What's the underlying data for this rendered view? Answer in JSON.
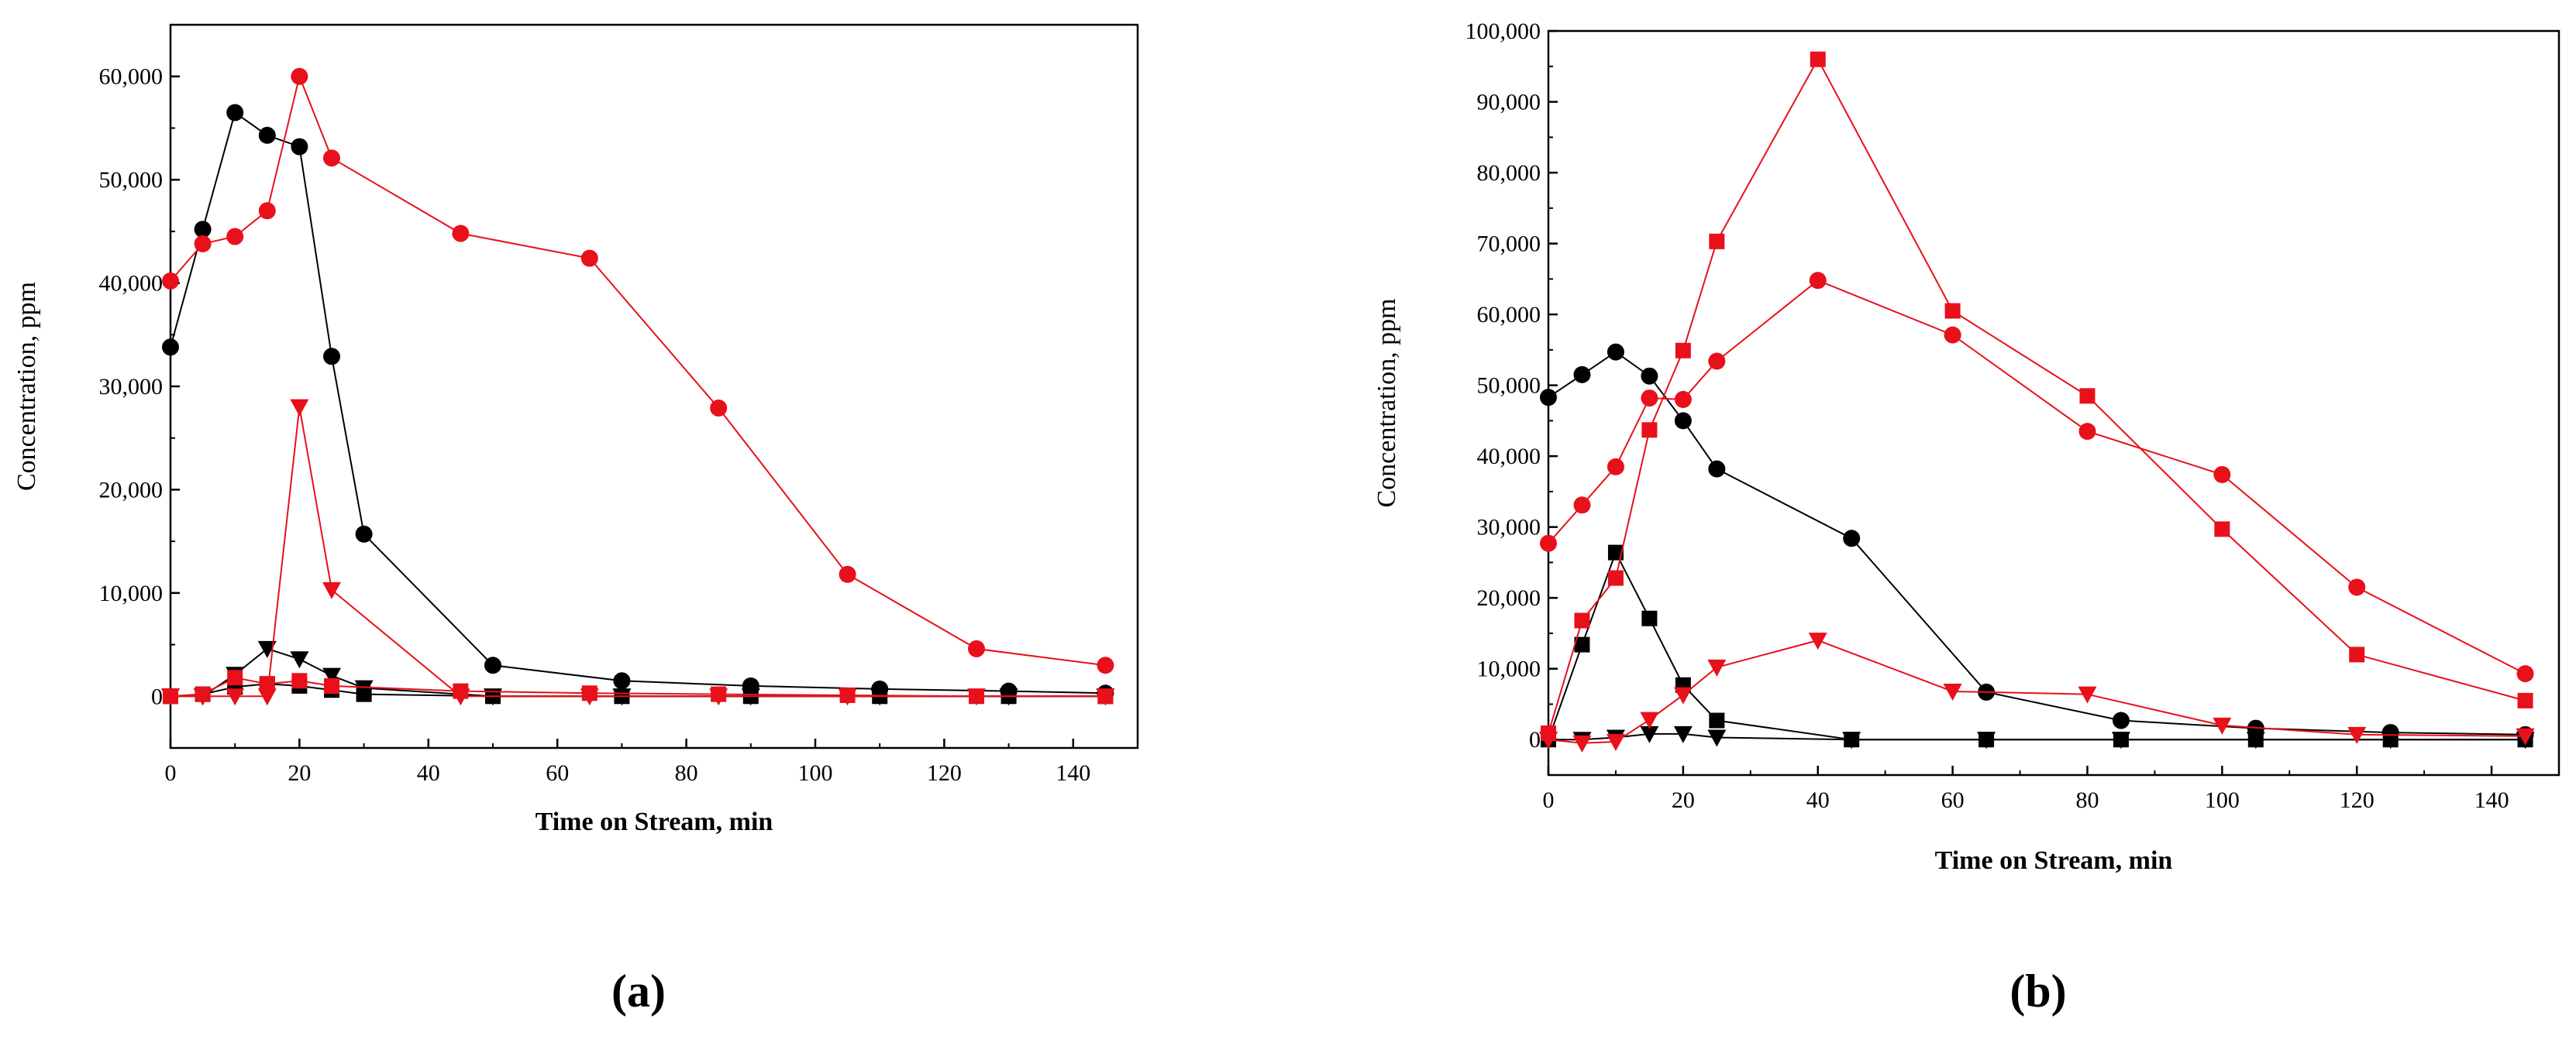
{
  "chart_data": [
    {
      "type": "line",
      "panel_label": "(a)",
      "xlabel": "Time on Stream, min",
      "ylabel": "Concentration, ppm",
      "xlim": [
        0,
        150
      ],
      "ylim": [
        -5000,
        65000
      ],
      "x_ticks": [
        0,
        20,
        40,
        60,
        80,
        100,
        120,
        140
      ],
      "x_tick_labels": [
        "0",
        "20",
        "40",
        "60",
        "80",
        "100",
        "120",
        "140"
      ],
      "y_ticks": [
        0,
        10000,
        20000,
        30000,
        40000,
        50000,
        60000
      ],
      "y_tick_labels": [
        "0",
        "10,000",
        "20,000",
        "30,000",
        "40,000",
        "50,000",
        "60,000"
      ],
      "grid": false,
      "series": [
        {
          "name": "black-circle",
          "color": "#000000",
          "marker": "circle",
          "x": [
            0,
            5,
            10,
            15,
            20,
            25,
            30,
            50,
            70,
            90,
            110,
            130,
            145
          ],
          "y": [
            33800,
            45200,
            56500,
            54300,
            53200,
            32900,
            15700,
            3000,
            1500,
            1000,
            700,
            500,
            300
          ]
        },
        {
          "name": "black-square",
          "color": "#000000",
          "marker": "square",
          "x": [
            0,
            5,
            10,
            15,
            20,
            25,
            30,
            50,
            70,
            90,
            110,
            130,
            145
          ],
          "y": [
            0,
            200,
            900,
            1200,
            1000,
            600,
            200,
            0,
            0,
            0,
            0,
            0,
            0
          ]
        },
        {
          "name": "black-triangle",
          "color": "#000000",
          "marker": "triangle-down",
          "x": [
            0,
            5,
            10,
            15,
            20,
            25,
            30,
            50,
            70,
            90,
            110,
            130,
            145
          ],
          "y": [
            0,
            0,
            2100,
            4600,
            3600,
            2000,
            800,
            0,
            0,
            0,
            0,
            0,
            0
          ]
        },
        {
          "name": "red-circle",
          "color": "#e8101a",
          "marker": "circle",
          "x": [
            0,
            5,
            10,
            15,
            20,
            25,
            45,
            65,
            85,
            105,
            125,
            145
          ],
          "y": [
            40200,
            43800,
            44500,
            47000,
            60000,
            52100,
            44800,
            42400,
            27900,
            11800,
            4600,
            3000
          ]
        },
        {
          "name": "red-square",
          "color": "#e8101a",
          "marker": "square",
          "x": [
            0,
            5,
            10,
            15,
            20,
            25,
            45,
            65,
            85,
            105,
            125,
            145
          ],
          "y": [
            0,
            200,
            1800,
            1200,
            1500,
            1000,
            500,
            300,
            200,
            100,
            0,
            0
          ]
        },
        {
          "name": "red-triangle",
          "color": "#e8101a",
          "marker": "triangle-down",
          "x": [
            0,
            5,
            10,
            15,
            20,
            25,
            45,
            65,
            85,
            105,
            125,
            145
          ],
          "y": [
            0,
            0,
            0,
            0,
            28000,
            10300,
            0,
            0,
            0,
            0,
            0,
            0
          ]
        }
      ]
    },
    {
      "type": "line",
      "panel_label": "(b)",
      "xlabel": "Time on Stream, min",
      "ylabel": "Concentration, ppm",
      "xlim": [
        0,
        150
      ],
      "ylim": [
        -5000,
        100000
      ],
      "x_ticks": [
        0,
        20,
        40,
        60,
        80,
        100,
        120,
        140
      ],
      "x_tick_labels": [
        "0",
        "20",
        "40",
        "60",
        "80",
        "100",
        "120",
        "140"
      ],
      "y_ticks": [
        0,
        10000,
        20000,
        30000,
        40000,
        50000,
        60000,
        70000,
        80000,
        90000,
        100000
      ],
      "y_tick_labels": [
        "0",
        "10,000",
        "20,000",
        "30,000",
        "40,000",
        "50,000",
        "60,000",
        "70,000",
        "80,000",
        "90,000",
        "100,000"
      ],
      "grid": false,
      "series": [
        {
          "name": "black-circle",
          "color": "#000000",
          "marker": "circle",
          "x": [
            0,
            5,
            10,
            15,
            20,
            25,
            45,
            65,
            85,
            105,
            125,
            145
          ],
          "y": [
            48300,
            51500,
            54700,
            51300,
            45000,
            38200,
            28400,
            6700,
            2700,
            1600,
            1000,
            700
          ]
        },
        {
          "name": "black-square",
          "color": "#000000",
          "marker": "square",
          "x": [
            0,
            5,
            10,
            15,
            20,
            25,
            45,
            65,
            85,
            105,
            125,
            145
          ],
          "y": [
            0,
            13400,
            26400,
            17100,
            7700,
            2700,
            0,
            0,
            0,
            0,
            0,
            0
          ]
        },
        {
          "name": "black-triangle",
          "color": "#000000",
          "marker": "triangle-down",
          "x": [
            0,
            5,
            10,
            15,
            20,
            25,
            45,
            65,
            85,
            105,
            125,
            145
          ],
          "y": [
            0,
            0,
            300,
            800,
            800,
            300,
            0,
            0,
            0,
            0,
            0,
            0
          ]
        },
        {
          "name": "red-circle",
          "color": "#e8101a",
          "marker": "circle",
          "x": [
            0,
            5,
            10,
            15,
            20,
            25,
            40,
            60,
            80,
            100,
            120,
            145
          ],
          "y": [
            27700,
            33100,
            38500,
            48200,
            48000,
            53400,
            64800,
            57100,
            43500,
            37400,
            21500,
            9300
          ]
        },
        {
          "name": "red-square",
          "color": "#e8101a",
          "marker": "square",
          "x": [
            0,
            5,
            10,
            15,
            20,
            25,
            40,
            60,
            80,
            100,
            120,
            145
          ],
          "y": [
            900,
            16800,
            22800,
            43700,
            54900,
            70300,
            96000,
            60500,
            48500,
            29700,
            12000,
            5500
          ]
        },
        {
          "name": "red-triangle",
          "color": "#e8101a",
          "marker": "triangle-down",
          "x": [
            0,
            5,
            10,
            15,
            20,
            25,
            40,
            60,
            80,
            100,
            120,
            145
          ],
          "y": [
            0,
            -500,
            -300,
            2800,
            6300,
            10200,
            14000,
            6800,
            6400,
            2000,
            700,
            500
          ]
        }
      ]
    }
  ]
}
